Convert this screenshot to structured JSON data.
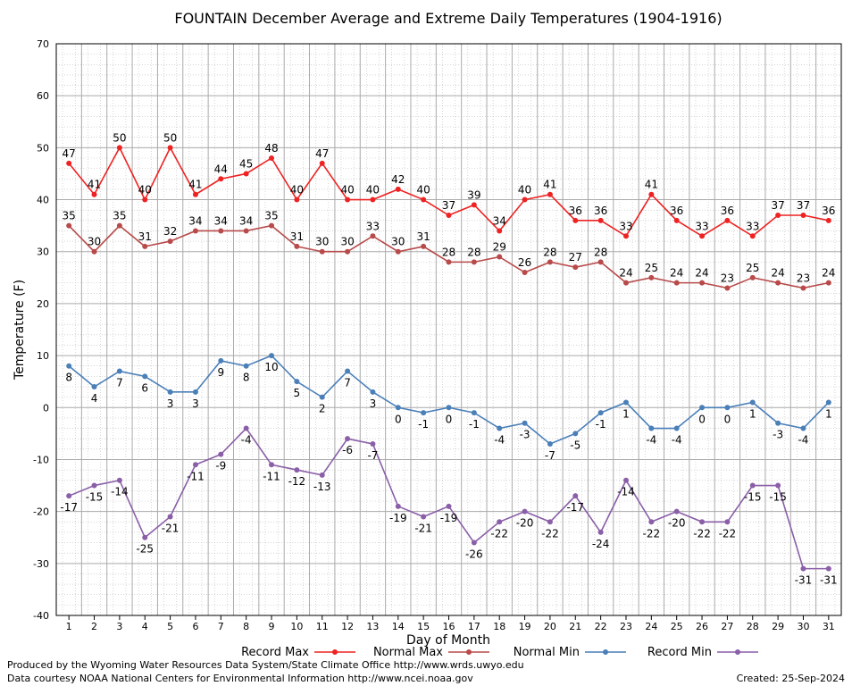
{
  "chart_data": {
    "type": "line",
    "title": "FOUNTAIN December Average and Extreme Daily Temperatures (1904-1916)",
    "xlabel": "Day of Month",
    "ylabel": "Temperature (F)",
    "xlim": [
      0.5,
      31.5
    ],
    "ylim": [
      -40,
      70
    ],
    "yticks": [
      -40,
      -30,
      -20,
      -10,
      0,
      10,
      20,
      30,
      40,
      50,
      60,
      70
    ],
    "grid": true,
    "legend_position": "bottom",
    "x": [
      1,
      2,
      3,
      4,
      5,
      6,
      7,
      8,
      9,
      10,
      11,
      12,
      13,
      14,
      15,
      16,
      17,
      18,
      19,
      20,
      21,
      22,
      23,
      24,
      25,
      26,
      27,
      28,
      29,
      30,
      31
    ],
    "series": [
      {
        "name": "Record Max",
        "color": "#ee2222",
        "label_pos": "above",
        "values": [
          47,
          41,
          50,
          40,
          50,
          41,
          44,
          45,
          48,
          40,
          47,
          40,
          40,
          42,
          40,
          37,
          39,
          34,
          40,
          41,
          36,
          36,
          33,
          41,
          36,
          33,
          36,
          33,
          37,
          37,
          36
        ]
      },
      {
        "name": "Normal Max",
        "color": "#b84a4a",
        "label_pos": "above",
        "values": [
          35,
          30,
          35,
          31,
          32,
          34,
          34,
          34,
          35,
          31,
          30,
          30,
          33,
          30,
          31,
          28,
          28,
          29,
          26,
          28,
          27,
          28,
          24,
          25,
          24,
          24,
          23,
          25,
          24,
          23,
          24
        ]
      },
      {
        "name": "Normal Min",
        "color": "#4a7fb8",
        "label_pos": "below",
        "values": [
          8,
          4,
          7,
          6,
          3,
          3,
          9,
          8,
          10,
          5,
          2,
          7,
          3,
          0,
          -1,
          0,
          -1,
          -4,
          -3,
          -7,
          -5,
          -1,
          1,
          -4,
          -4,
          0,
          0,
          1,
          -3,
          -4,
          1
        ]
      },
      {
        "name": "Record Min",
        "color": "#8a5fa8",
        "label_pos": "below",
        "values": [
          -17,
          -15,
          -14,
          -25,
          -21,
          -11,
          -9,
          -4,
          -11,
          -12,
          -13,
          -6,
          -7,
          -19,
          -21,
          -19,
          -26,
          -22,
          -20,
          -22,
          -17,
          -24,
          -14,
          -22,
          -20,
          -22,
          -22,
          -15,
          -15,
          -31,
          -31
        ]
      }
    ]
  },
  "footer": {
    "produced_by": "Produced by the Wyoming Water Resources Data System/State Climate Office http://www.wrds.uwyo.edu",
    "courtesy": "Data courtesy NOAA National Centers for Environmental Information http://www.ncei.noaa.gov",
    "created": "Created:  25-Sep-2024"
  }
}
